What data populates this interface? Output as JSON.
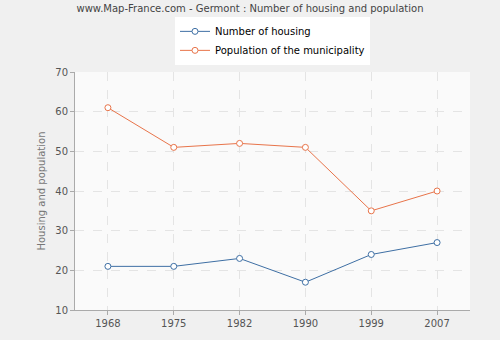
{
  "chart_data": {
    "type": "line",
    "title": "www.Map-France.com - Germont : Number of housing and population",
    "y_label": "Housing and population",
    "categories": [
      "1968",
      "1975",
      "1982",
      "1990",
      "1999",
      "2007"
    ],
    "series": [
      {
        "name": "Number of housing",
        "color": "#3e6fa4",
        "values": [
          21,
          21,
          23,
          17,
          24,
          27
        ]
      },
      {
        "name": "Population of the municipality",
        "color": "#e8744a",
        "values": [
          61,
          51,
          52,
          51,
          35,
          40
        ]
      }
    ],
    "ylim": [
      10,
      70
    ],
    "yticks": [
      10,
      20,
      30,
      40,
      50,
      60,
      70
    ],
    "grid": true,
    "legend": "top",
    "marker": "circle"
  }
}
